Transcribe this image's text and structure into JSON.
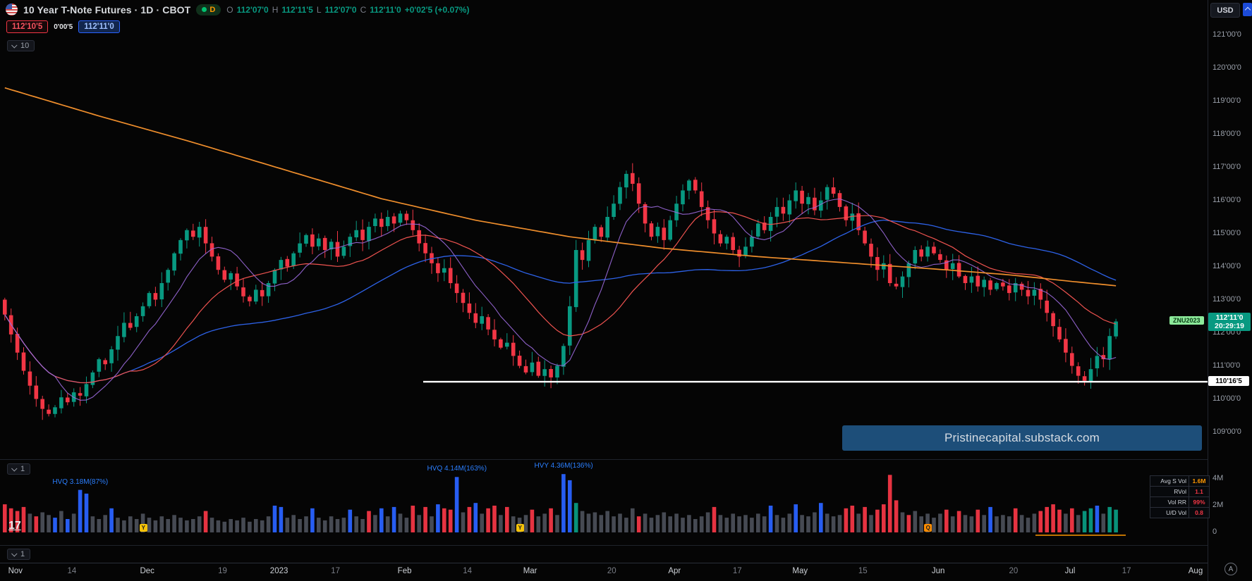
{
  "app": {
    "watermark": "17"
  },
  "header": {
    "title": "10 Year T-Note Futures · 1D · CBOT",
    "interval_badge": "D",
    "ohlc": {
      "o_label": "O",
      "o_value": "112'07'0",
      "h_label": "H",
      "h_value": "112'11'5",
      "l_label": "L",
      "l_value": "112'07'0",
      "c_label": "C",
      "c_value": "112'11'0",
      "change_value": "+0'02'5 (+0.07%)"
    },
    "bid": "112'10'5",
    "spread": "0'00'5",
    "ask": "112'11'0",
    "indicator_selector": "10"
  },
  "price_axis": {
    "currency": "USD",
    "labels": [
      {
        "text": "121'00'0",
        "value": 121
      },
      {
        "text": "120'00'0",
        "value": 120
      },
      {
        "text": "119'00'0",
        "value": 119
      },
      {
        "text": "118'00'0",
        "value": 118
      },
      {
        "text": "117'00'0",
        "value": 117
      },
      {
        "text": "116'00'0",
        "value": 116
      },
      {
        "text": "115'00'0",
        "value": 115
      },
      {
        "text": "114'00'0",
        "value": 114
      },
      {
        "text": "113'00'0",
        "value": 113
      },
      {
        "text": "112'00'0",
        "value": 112
      },
      {
        "text": "111'00'0",
        "value": 111
      },
      {
        "text": "110'00'0",
        "value": 110
      },
      {
        "text": "109'00'0",
        "value": 109
      }
    ],
    "symbol_label": "ZNU2023",
    "last_price": "112'11'0",
    "countdown": "20:29:19",
    "support_price_label": "110'16'5"
  },
  "banner": {
    "text": "Pristinecapital.substack.com"
  },
  "volume_pane": {
    "selector_label": "1",
    "axis_labels": [
      {
        "text": "4M",
        "value": 4
      },
      {
        "text": "2M",
        "value": 2
      },
      {
        "text": "0",
        "value": 0
      }
    ],
    "spike_annotations": [
      {
        "text": "HVQ 3.18M(87%)",
        "bar": 12,
        "vol": 3.18
      },
      {
        "text": "HVQ 4.14M(163%)",
        "bar": 72,
        "vol": 4.14
      },
      {
        "text": "HVY 4.36M(136%)",
        "bar": 89,
        "vol": 4.36
      }
    ],
    "event_markers": [
      {
        "text": "Y",
        "bar": 22,
        "color": "#f6c309"
      },
      {
        "text": "Y",
        "bar": 82,
        "color": "#f6c309"
      },
      {
        "text": "Q",
        "bar": 147,
        "color": "#fb8c00"
      }
    ],
    "legend_rows": [
      {
        "label": "Avg S Vol",
        "value": "1.6M",
        "value_color": "#ff9800"
      },
      {
        "label": "RVol",
        "value": "1.1",
        "value_color": "#f23645"
      },
      {
        "label": "Vol RR",
        "value": "99%",
        "value_color": "#f23645"
      },
      {
        "label": "U/D Vol",
        "value": "0.8",
        "value_color": "#f23645"
      }
    ]
  },
  "pane2": {
    "selector_label": "1"
  },
  "time_axis": {
    "ticks": [
      {
        "label": "Nov",
        "bar": 2,
        "major": true
      },
      {
        "label": "14",
        "bar": 11,
        "major": false
      },
      {
        "label": "Dec",
        "bar": 23,
        "major": true
      },
      {
        "label": "19",
        "bar": 35,
        "major": false
      },
      {
        "label": "2023",
        "bar": 44,
        "major": true
      },
      {
        "label": "17",
        "bar": 53,
        "major": false
      },
      {
        "label": "Feb",
        "bar": 64,
        "major": true
      },
      {
        "label": "14",
        "bar": 74,
        "major": false
      },
      {
        "label": "Mar",
        "bar": 84,
        "major": true
      },
      {
        "label": "20",
        "bar": 97,
        "major": false
      },
      {
        "label": "Apr",
        "bar": 107,
        "major": true
      },
      {
        "label": "17",
        "bar": 117,
        "major": false
      },
      {
        "label": "May",
        "bar": 127,
        "major": true
      },
      {
        "label": "15",
        "bar": 137,
        "major": false
      },
      {
        "label": "Jun",
        "bar": 149,
        "major": true
      },
      {
        "label": "20",
        "bar": 161,
        "major": false
      },
      {
        "label": "Jul",
        "bar": 170,
        "major": true
      },
      {
        "label": "17",
        "bar": 179,
        "major": false
      },
      {
        "label": "Aug",
        "bar": 190,
        "major": true
      }
    ]
  },
  "bottom_right": {
    "auto_label": "A"
  },
  "chart_data": {
    "type": "candlestick",
    "title": "10 Year T-Note Futures, 1D, CBOT",
    "symbol": "ZNU2023",
    "timeframe": "1D",
    "price_format": "32nds",
    "ylim": [
      109,
      121
    ],
    "last_close_display": "112'11'0",
    "change_display": "+0'02'5 (+0.07%)",
    "support_level": 110.52,
    "closes": [
      112.55,
      111.95,
      111.4,
      110.85,
      110.4,
      110.0,
      109.7,
      109.55,
      109.75,
      110.05,
      109.9,
      110.2,
      110.1,
      110.45,
      110.8,
      111.2,
      111.05,
      111.5,
      111.9,
      112.3,
      112.15,
      112.5,
      112.8,
      113.2,
      113.0,
      113.5,
      113.9,
      114.4,
      114.8,
      115.1,
      114.9,
      115.2,
      114.7,
      114.3,
      113.9,
      113.6,
      113.8,
      113.4,
      113.1,
      112.95,
      113.3,
      113.1,
      113.5,
      113.9,
      114.2,
      114.0,
      114.4,
      114.7,
      114.95,
      114.6,
      114.85,
      114.5,
      114.75,
      114.3,
      114.6,
      114.9,
      115.1,
      114.8,
      115.2,
      115.45,
      115.2,
      115.5,
      115.3,
      115.6,
      115.4,
      115.1,
      114.7,
      114.4,
      114.1,
      113.8,
      113.95,
      113.5,
      113.2,
      112.9,
      112.6,
      112.3,
      112.5,
      112.1,
      111.8,
      111.55,
      111.7,
      111.3,
      111.0,
      110.8,
      111.1,
      110.7,
      110.9,
      110.65,
      111.0,
      111.6,
      112.8,
      114.5,
      114.2,
      114.8,
      115.2,
      114.9,
      115.5,
      115.9,
      116.4,
      116.8,
      116.5,
      115.9,
      115.3,
      114.9,
      115.2,
      114.8,
      115.4,
      115.9,
      116.3,
      116.6,
      116.3,
      115.8,
      115.4,
      115.0,
      114.7,
      114.9,
      114.5,
      114.3,
      114.6,
      114.9,
      115.3,
      115.1,
      115.5,
      115.8,
      115.6,
      116.0,
      116.3,
      115.9,
      116.1,
      115.7,
      116.0,
      116.4,
      116.2,
      115.8,
      115.4,
      115.6,
      115.1,
      114.7,
      114.3,
      113.9,
      114.1,
      113.5,
      113.4,
      113.7,
      114.1,
      114.5,
      114.3,
      114.6,
      114.4,
      114.2,
      113.9,
      114.1,
      113.7,
      113.5,
      113.7,
      113.4,
      113.6,
      113.3,
      113.5,
      113.4,
      113.2,
      113.5,
      113.3,
      113.1,
      113.3,
      113.0,
      112.6,
      112.2,
      111.8,
      111.4,
      111.0,
      110.7,
      110.55,
      110.9,
      111.3,
      111.2,
      111.9,
      112.34
    ],
    "volumes_m": [
      2.1,
      1.8,
      1.6,
      1.9,
      1.4,
      1.2,
      1.5,
      1.3,
      1.1,
      1.6,
      1.0,
      1.4,
      3.18,
      2.9,
      1.2,
      1.0,
      1.3,
      1.8,
      1.1,
      0.9,
      1.2,
      1.0,
      1.4,
      1.1,
      0.9,
      1.2,
      1.0,
      1.3,
      1.1,
      0.9,
      1.0,
      1.2,
      1.6,
      1.1,
      0.9,
      0.8,
      1.0,
      0.9,
      1.1,
      0.8,
      1.0,
      0.9,
      1.2,
      2.0,
      1.9,
      1.1,
      1.3,
      1.0,
      1.2,
      1.8,
      1.1,
      0.9,
      1.2,
      1.0,
      1.1,
      1.7,
      1.2,
      1.0,
      1.6,
      1.3,
      1.8,
      1.2,
      1.9,
      1.4,
      1.1,
      2.0,
      1.3,
      1.9,
      1.2,
      2.1,
      1.8,
      1.7,
      4.14,
      1.5,
      1.9,
      2.2,
      1.4,
      1.8,
      2.0,
      1.3,
      1.9,
      1.2,
      1.1,
      1.3,
      1.7,
      1.2,
      1.4,
      1.8,
      1.3,
      4.36,
      3.9,
      2.2,
      1.6,
      1.4,
      1.5,
      1.3,
      1.6,
      1.2,
      1.4,
      1.1,
      1.8,
      1.2,
      1.4,
      1.1,
      1.3,
      1.5,
      1.2,
      1.4,
      1.1,
      1.3,
      1.0,
      1.2,
      1.5,
      1.9,
      1.3,
      1.1,
      1.4,
      1.2,
      1.3,
      1.1,
      1.4,
      1.2,
      2.0,
      1.3,
      1.1,
      1.4,
      2.1,
      1.3,
      1.2,
      1.5,
      2.2,
      1.4,
      1.2,
      1.3,
      1.8,
      2.0,
      1.4,
      1.9,
      1.3,
      1.7,
      2.1,
      4.3,
      2.4,
      1.5,
      1.3,
      1.6,
      1.2,
      1.4,
      1.1,
      1.4,
      1.7,
      1.2,
      1.6,
      1.3,
      1.2,
      1.7,
      1.3,
      1.9,
      1.2,
      1.3,
      1.2,
      1.8,
      1.3,
      1.1,
      1.4,
      1.6,
      1.9,
      2.1,
      1.7,
      1.4,
      1.8,
      1.3,
      1.6,
      1.8,
      2.0,
      1.4,
      1.9,
      1.7
    ],
    "volume_color_segments": [
      "rrrrgrgg",
      "bgbgbb",
      "gggbgggg",
      "gggggggg",
      "ggrggg",
      "gggggg",
      "gbbggggbggg",
      "ggbggrgbgbgg",
      "rgrgbrrbgrbgrrgrgg",
      "grggrg",
      "bbGgg",
      "gggggg",
      "grgggg",
      "ggggg",
      "ggrgggg",
      "ggggbgg",
      "gbgggbgg",
      "grrgrgrrrr",
      "grgggg",
      "grgrggrgbg",
      "ggrgggr",
      "rrrgrgG",
      "GbgGG"
    ],
    "ma200_anchors": [
      [
        0,
        119.4
      ],
      [
        15,
        118.55
      ],
      [
        30,
        117.75
      ],
      [
        45,
        116.9
      ],
      [
        60,
        116.05
      ],
      [
        75,
        115.4
      ],
      [
        90,
        114.9
      ],
      [
        105,
        114.55
      ],
      [
        120,
        114.3
      ],
      [
        135,
        114.1
      ],
      [
        150,
        113.9
      ],
      [
        160,
        113.75
      ],
      [
        170,
        113.55
      ],
      [
        177,
        113.42
      ]
    ],
    "sma_windows": [
      9,
      21,
      50
    ],
    "colors": {
      "up": "#089981",
      "down": "#f23645",
      "ma_fast": "#9c6ade",
      "ma_mid": "#ef5350",
      "ma_slow": "#2d62e8",
      "ma_long": "#ef8e2c",
      "vol_gray": "#565b66",
      "vol_blue": "#2962ff",
      "vol_red": "#f23645",
      "vol_green": "#089981",
      "support": "#ffffff",
      "banner_bg": "#1d4e79",
      "last_label_bg": "#089981",
      "symbol_badge_bg": "#8ce99a",
      "symbol_badge_text": "#0b3d16"
    }
  }
}
